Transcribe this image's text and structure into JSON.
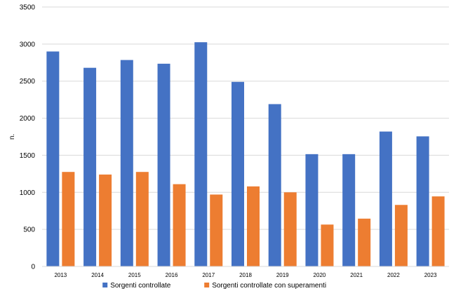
{
  "chart_data": {
    "type": "bar",
    "categories": [
      "2013",
      "2014",
      "2015",
      "2016",
      "2017",
      "2018",
      "2019",
      "2020",
      "2021",
      "2022",
      "2023"
    ],
    "series": [
      {
        "name": "Sorgenti controllate",
        "color": "#4472c4",
        "values": [
          2900,
          2680,
          2785,
          2735,
          3025,
          2490,
          2190,
          1515,
          1515,
          1820,
          1755
        ]
      },
      {
        "name": "Sorgenti controllate con superamenti",
        "color": "#ed7d31",
        "values": [
          1275,
          1240,
          1275,
          1110,
          970,
          1080,
          1000,
          565,
          645,
          830,
          945
        ]
      }
    ],
    "title": "",
    "xlabel": "",
    "ylabel": "n.",
    "ylim": [
      0,
      3500
    ],
    "yticks": [
      0,
      500,
      1000,
      1500,
      2000,
      2500,
      3000,
      3500
    ],
    "grid": true,
    "grid_color": "#d9d9d9",
    "legend_position": "bottom"
  }
}
